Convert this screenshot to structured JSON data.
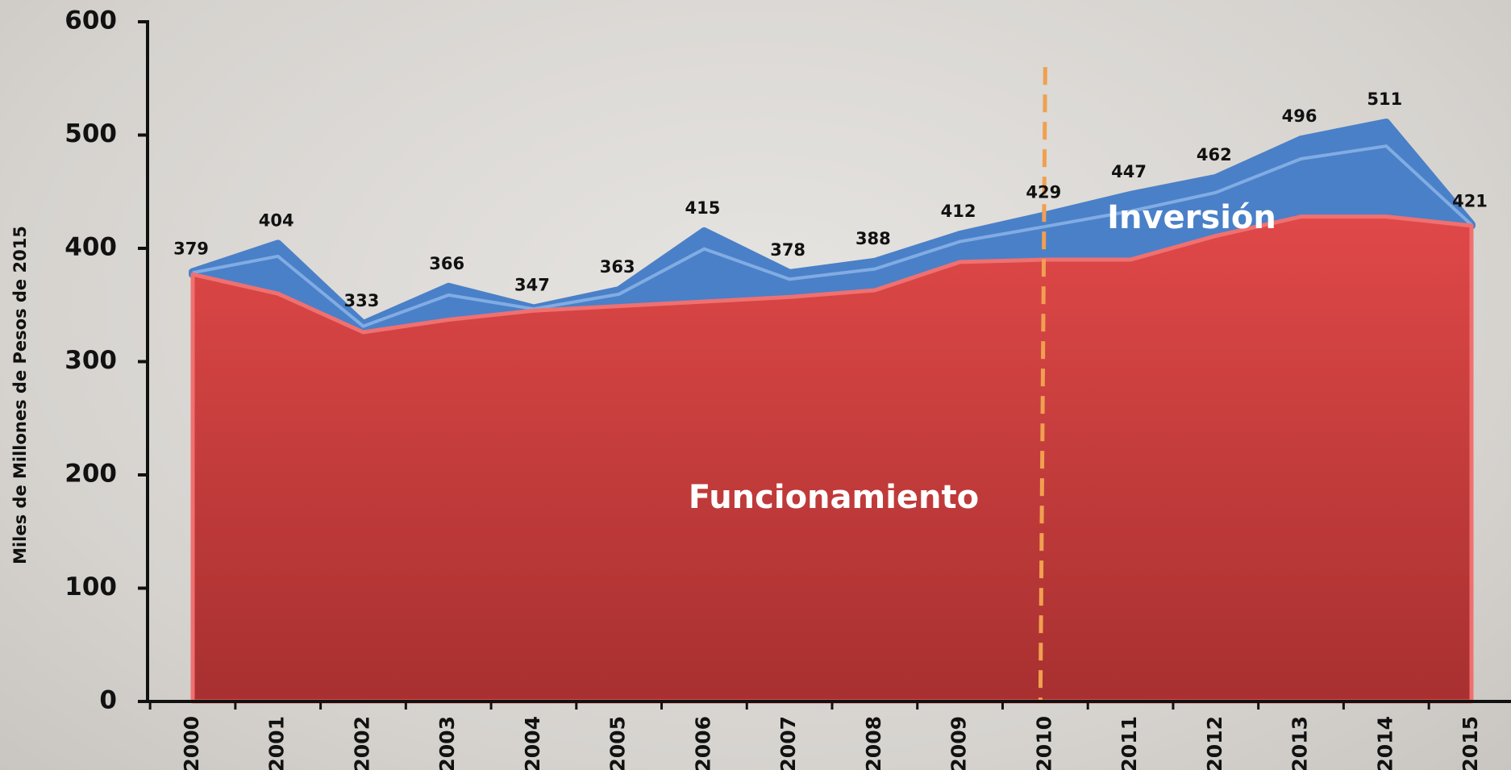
{
  "chart_data": {
    "type": "stacked-area",
    "y_label": "Miles de Millones  de Pesos de 2015",
    "categories": [
      "2000",
      "2001",
      "2002",
      "2003",
      "2004",
      "2005",
      "2006",
      "2007",
      "2008",
      "2009",
      "2010",
      "2011",
      "2012",
      "2013",
      "2014",
      "2015"
    ],
    "series": [
      {
        "name": "Funcionamiento",
        "color": "#c93b3b",
        "values": [
          377,
          360,
          326,
          337,
          345,
          349,
          353,
          357,
          363,
          388,
          390,
          390,
          411,
          428,
          428,
          420
        ]
      },
      {
        "name": "Inversión",
        "color": "#4a80c8",
        "values": [
          2,
          44,
          7,
          29,
          2,
          14,
          62,
          21,
          25,
          24,
          39,
          57,
          51,
          68,
          83,
          1
        ]
      }
    ],
    "totals": [
      379,
      404,
      333,
      366,
      347,
      363,
      415,
      378,
      388,
      412,
      429,
      447,
      462,
      496,
      511,
      421
    ],
    "ylim": [
      0,
      600
    ],
    "yticks": [
      0,
      100,
      200,
      300,
      400,
      500,
      600
    ],
    "reference_line": {
      "category": "2010",
      "top": 560,
      "color": "#f0a050"
    }
  }
}
